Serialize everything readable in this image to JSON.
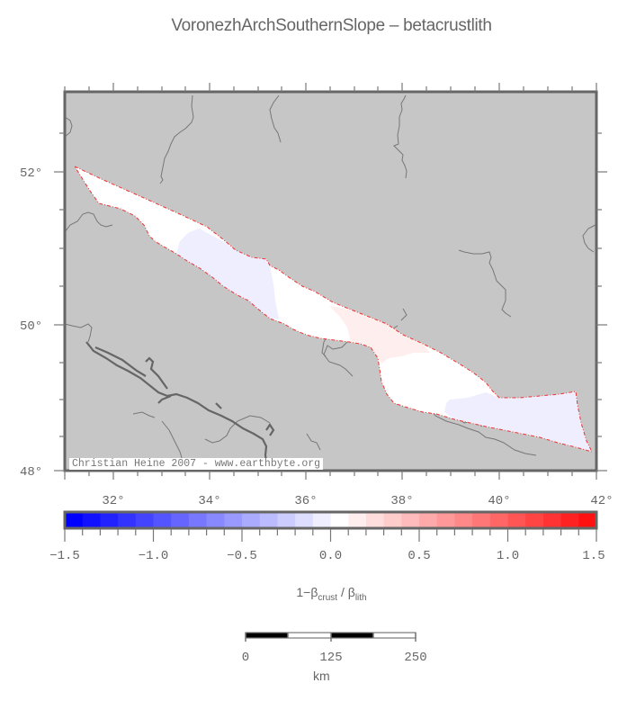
{
  "title": "VoronezhArchSouthernSlope – betacrustlith",
  "map": {
    "background_color": "#c6c6c6",
    "frame_color": "#666666",
    "lat_labels": [
      {
        "label": "52°",
        "value": 52
      },
      {
        "label": "50°",
        "value": 50
      },
      {
        "label": "48°",
        "value": 48
      }
    ],
    "lon_labels": [
      {
        "label": "32°",
        "value": 32
      },
      {
        "label": "34°",
        "value": 34
      },
      {
        "label": "36°",
        "value": 36
      },
      {
        "label": "38°",
        "value": 38
      },
      {
        "label": "40°",
        "value": 40
      },
      {
        "label": "42°",
        "value": 42
      }
    ],
    "credit": "Christian Heine 2007 - www.earthbyte.org",
    "region_outline_color": "#ee3333"
  },
  "colorbar": {
    "label_main": "1−β",
    "label_sub1": "crust",
    "label_mid": " / β",
    "label_sub2": "lith",
    "min": -1.5,
    "max": 1.5,
    "tick_labels": [
      "−1.5",
      "−1.0",
      "−0.5",
      "0.0",
      "0.5",
      "1.0",
      "1.5"
    ],
    "colors": [
      "#0000ff",
      "#1111ff",
      "#2222ff",
      "#3333ff",
      "#4444ff",
      "#5555ff",
      "#6666ff",
      "#7777ff",
      "#8888ff",
      "#9999ff",
      "#aaaaff",
      "#bbbbff",
      "#ccccff",
      "#ddddff",
      "#eeeeff",
      "#ffffff",
      "#ffeeee",
      "#ffdddd",
      "#ffcccc",
      "#ffbbbb",
      "#ffaaaa",
      "#ff9999",
      "#ff8888",
      "#ff7777",
      "#ff6666",
      "#ff5555",
      "#ff4444",
      "#ff3333",
      "#ff2222",
      "#ff1111"
    ]
  },
  "scalebar": {
    "tick_labels": [
      "0",
      "125",
      "250"
    ],
    "unit": "km"
  }
}
